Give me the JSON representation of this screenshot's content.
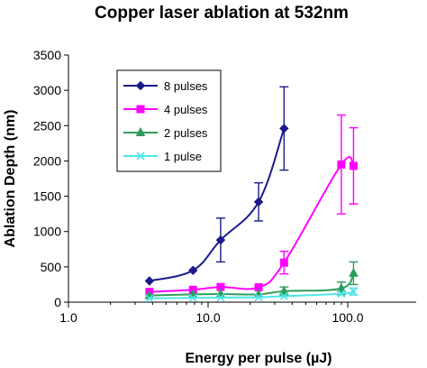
{
  "chart_data": {
    "type": "line",
    "title": "Copper laser ablation at 532nm",
    "xlabel": "Energy per pulse (µJ)",
    "ylabel": "Ablation Depth  (nm)",
    "xscale": "log",
    "xlim": [
      1.0,
      100.0
    ],
    "ylim": [
      0,
      3500
    ],
    "x_ticks": [
      1.0,
      10.0,
      100.0
    ],
    "x_tick_labels": [
      "1.0",
      "10.0",
      "100.0"
    ],
    "y_ticks": [
      0,
      500,
      1000,
      1500,
      2000,
      2500,
      3000,
      3500
    ],
    "y_tick_labels": [
      "0",
      "500",
      "1000",
      "1500",
      "2000",
      "2500",
      "3000",
      "3500"
    ],
    "grid": false,
    "legend_position": "top-left",
    "series": [
      {
        "name": "8 pulses",
        "color": "#1a1a8c",
        "marker": "diamond",
        "x": [
          3.8,
          7.8,
          12.3,
          23,
          35
        ],
        "y": [
          300,
          450,
          880,
          1420,
          2460
        ],
        "err": [
          0,
          0,
          310,
          270,
          590
        ]
      },
      {
        "name": "4 pulses",
        "color": "#ff00ff",
        "marker": "square",
        "x": [
          3.8,
          7.8,
          12.3,
          23,
          35,
          90,
          110
        ],
        "y": [
          145,
          175,
          215,
          210,
          560,
          1950,
          1930
        ],
        "err": [
          0,
          0,
          0,
          0,
          160,
          700,
          540
        ]
      },
      {
        "name": "2 pulses",
        "color": "#2e9e5b",
        "marker": "triangle",
        "x": [
          3.8,
          7.8,
          12.3,
          23,
          35,
          90,
          110
        ],
        "y": [
          95,
          110,
          115,
          110,
          155,
          195,
          410
        ],
        "err": [
          0,
          0,
          0,
          0,
          60,
          90,
          160
        ]
      },
      {
        "name": "1 pulse",
        "color": "#4de6ea",
        "marker": "x",
        "x": [
          3.8,
          7.8,
          12.3,
          23,
          35,
          90,
          110
        ],
        "y": [
          55,
          60,
          65,
          70,
          85,
          120,
          150
        ],
        "err": [
          0,
          0,
          0,
          0,
          0,
          0,
          50
        ]
      }
    ]
  }
}
